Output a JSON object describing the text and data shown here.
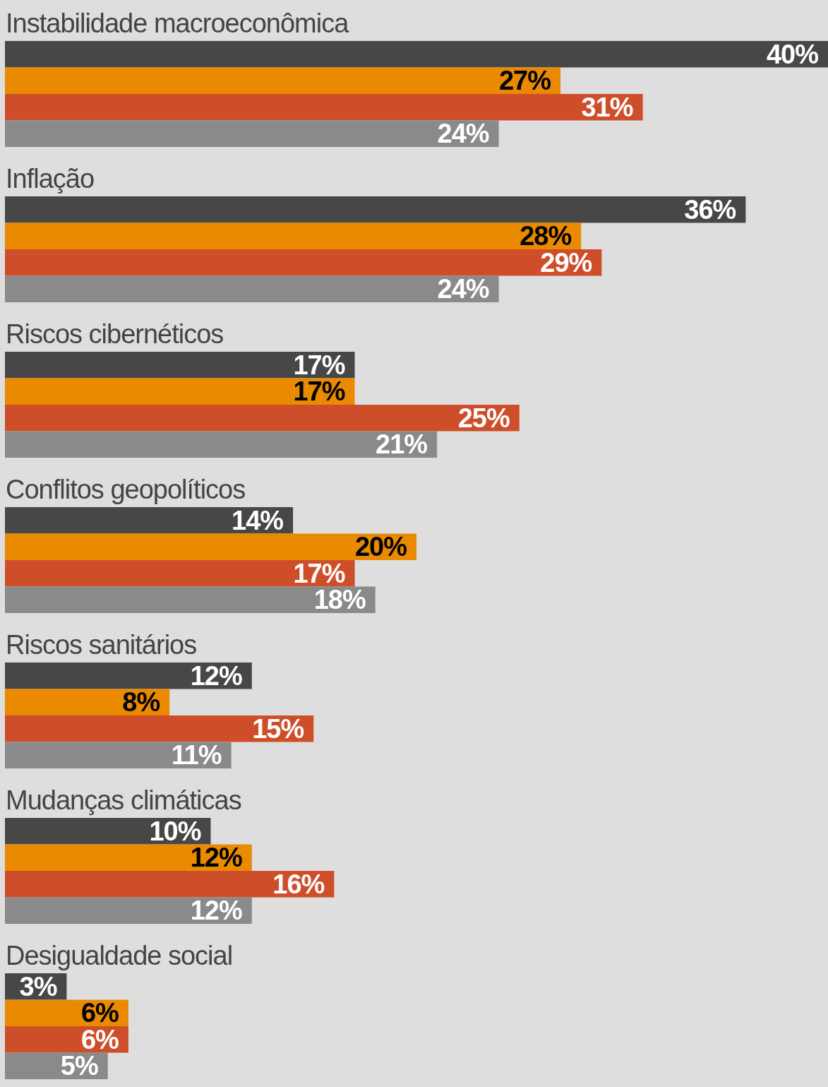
{
  "chart_data": {
    "type": "bar",
    "orientation": "horizontal",
    "categories": [
      "Instabilidade macroeconômica",
      "Inflação",
      "Riscos cibernéticos",
      "Conflitos geopolíticos",
      "Riscos sanitários",
      "Mudanças climáticas",
      "Desigualdade social"
    ],
    "series": [
      {
        "color": "#474747",
        "values": [
          40,
          36,
          17,
          14,
          12,
          10,
          3
        ],
        "value_labels": [
          "40%",
          "36%",
          "17%",
          "14%",
          "12%",
          "10%",
          "3%"
        ]
      },
      {
        "color": "#e98a00",
        "values": [
          27,
          28,
          17,
          20,
          8,
          12,
          6
        ],
        "value_labels": [
          "27%",
          "28%",
          "17%",
          "20%",
          "8%",
          "12%",
          "6%"
        ]
      },
      {
        "color": "#cf4e2a",
        "values": [
          31,
          29,
          25,
          17,
          15,
          16,
          6
        ],
        "value_labels": [
          "31%",
          "29%",
          "25%",
          "17%",
          "15%",
          "16%",
          "6%"
        ]
      },
      {
        "color": "#8a8a8b",
        "values": [
          24,
          24,
          21,
          18,
          11,
          12,
          5
        ],
        "value_labels": [
          "24%",
          "24%",
          "21%",
          "18%",
          "11%",
          "12%",
          "5%"
        ]
      }
    ]
  }
}
